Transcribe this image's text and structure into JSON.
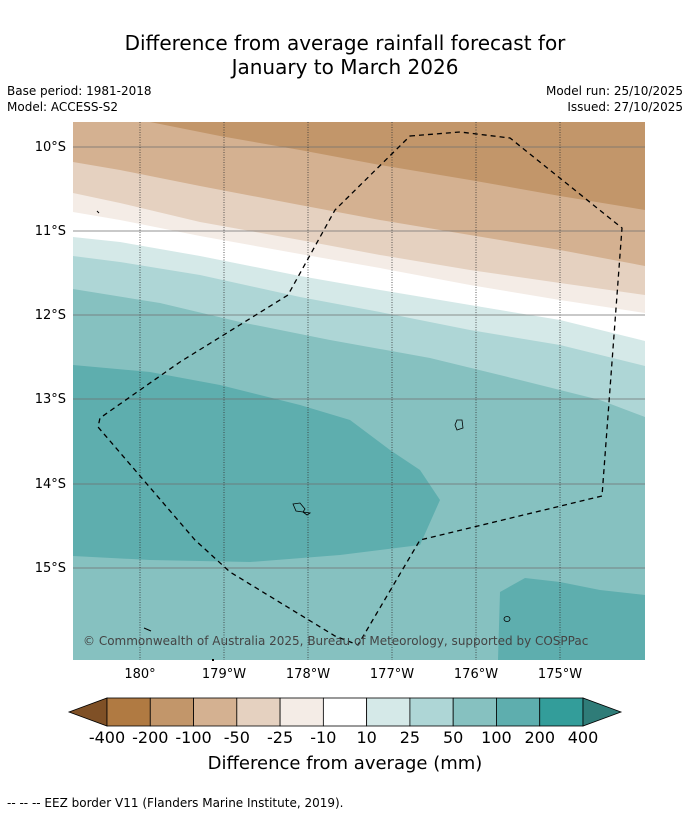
{
  "title_line1": "Difference from average rainfall forecast for",
  "title_line2": "January to March 2026",
  "meta_left": [
    "Base period: 1981-2018",
    "Model: ACCESS-S2"
  ],
  "meta_right": [
    "Model run: 25/10/2025",
    "Issued: 27/10/2025"
  ],
  "lat_labels": [
    "10°S",
    "11°S",
    "12°S",
    "13°S",
    "14°S",
    "15°S"
  ],
  "lon_labels": [
    "180°",
    "179°W",
    "178°W",
    "177°W",
    "176°W",
    "175°W"
  ],
  "copyright": "© Commonwealth of Australia 2025, Bureau of Meteorology, supported by COSPPac",
  "colorbar": {
    "labels": [
      "-400",
      "-200",
      "-100",
      "-50",
      "-25",
      "-10",
      "10",
      "25",
      "50",
      "100",
      "200",
      "400"
    ],
    "colors": [
      "#7f5026",
      "#b07a42",
      "#c2966a",
      "#d4b191",
      "#e5d1c0",
      "#f4ece6",
      "#ffffff",
      "#d5e9e8",
      "#aed6d6",
      "#86c1c0",
      "#5eaeae",
      "#339d9a",
      "#2f7c78"
    ],
    "title": "Difference from average (mm)"
  },
  "footer": "--  --  -- EEZ border V11 (Flanders Marine Institute, 2019)."
}
